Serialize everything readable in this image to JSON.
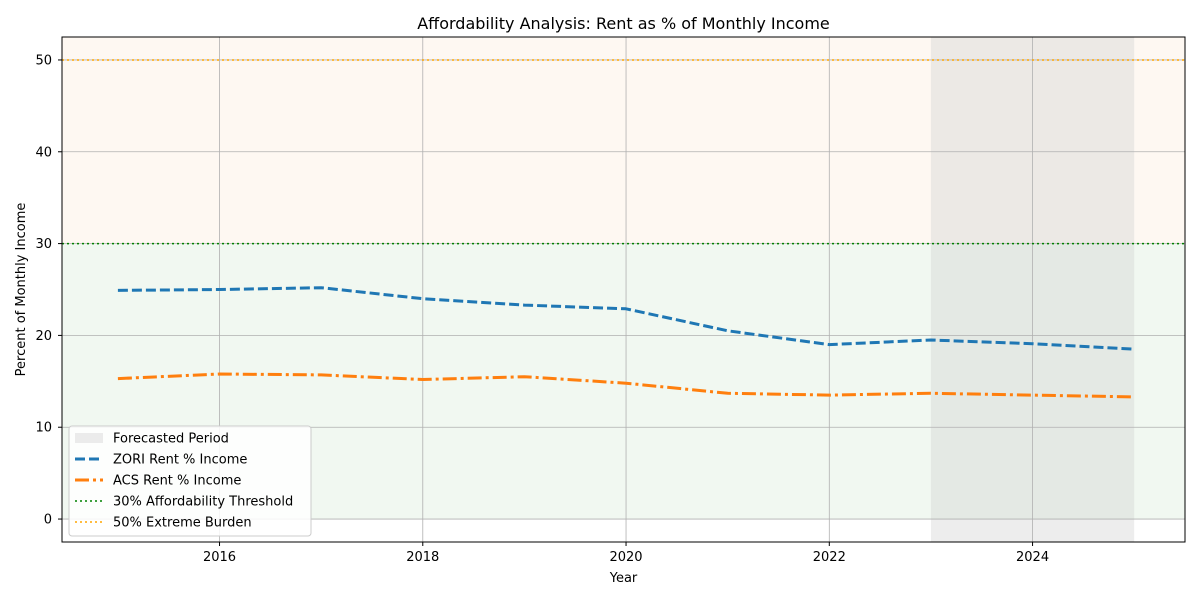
{
  "chart_data": {
    "type": "line",
    "title": "Affordability Analysis: Rent as % of Monthly Income",
    "xlabel": "Year",
    "ylabel": "Percent of Monthly Income",
    "xlim": [
      2014.45,
      2025.5
    ],
    "ylim": [
      -2.5,
      52.5
    ],
    "x_ticks": [
      2016,
      2018,
      2020,
      2022,
      2024
    ],
    "y_ticks": [
      0,
      10,
      20,
      30,
      40,
      50
    ],
    "grid": true,
    "legend_position": "lower-left",
    "x": [
      2015,
      2016,
      2017,
      2018,
      2019,
      2020,
      2021,
      2022,
      2023,
      2024,
      2025
    ],
    "series": [
      {
        "name": "ZORI Rent % Income",
        "color": "#1f77b4",
        "style": "dashed",
        "values": [
          24.9,
          25.0,
          25.2,
          24.0,
          23.3,
          22.9,
          20.5,
          19.0,
          19.5,
          19.1,
          18.5
        ]
      },
      {
        "name": "ACS Rent % Income",
        "color": "#ff7f0e",
        "style": "dashdot",
        "values": [
          15.3,
          15.8,
          15.7,
          15.2,
          15.5,
          14.8,
          13.7,
          13.5,
          13.7,
          13.5,
          13.3
        ]
      }
    ],
    "reference_lines": [
      {
        "name": "30% Affordability Threshold",
        "y": 30,
        "color": "#008000",
        "style": "dotted"
      },
      {
        "name": "50% Extreme Burden",
        "y": 50,
        "color": "#ffa500",
        "style": "dotted"
      }
    ],
    "shaded_bands": [
      {
        "from": 0,
        "to": 30,
        "color": "#e6f2e6"
      },
      {
        "from": 30,
        "to": 52.5,
        "color": "#fdf3e7"
      }
    ],
    "forecast_region": {
      "name": "Forecasted Period",
      "from": 2023,
      "to": 2025,
      "color": "#d3d3d3"
    },
    "legend": [
      {
        "label": "Forecasted Period",
        "kind": "patch",
        "color": "#ebebeb"
      },
      {
        "label": "ZORI Rent % Income",
        "kind": "line",
        "color": "#1f77b4",
        "style": "dashed"
      },
      {
        "label": "ACS Rent % Income",
        "kind": "line",
        "color": "#ff7f0e",
        "style": "dashdot"
      },
      {
        "label": "30% Affordability Threshold",
        "kind": "line",
        "color": "#008000",
        "style": "dotted"
      },
      {
        "label": "50% Extreme Burden",
        "kind": "line",
        "color": "#ffa500",
        "style": "dotted"
      }
    ]
  }
}
